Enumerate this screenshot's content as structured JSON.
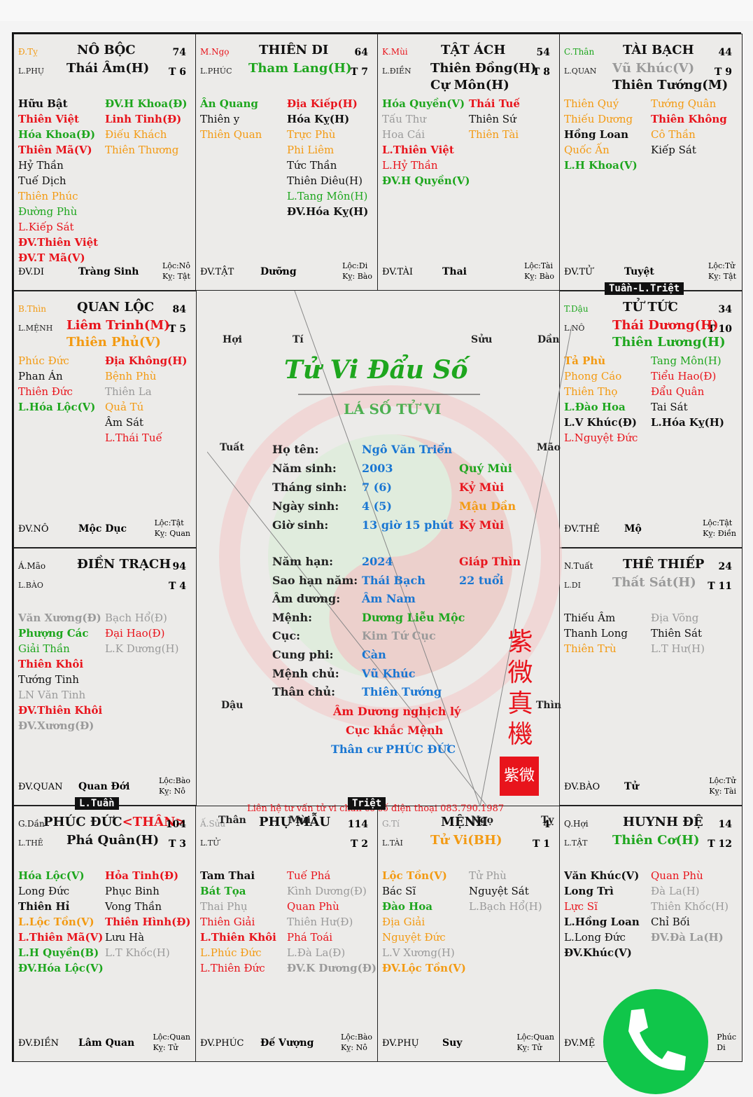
{
  "cells": [
    {
      "id": "no-boc",
      "can": {
        "t": "Đ.Tỵ",
        "c": "orange"
      },
      "name": "NÔ BỘC",
      "age": "74",
      "lsub": "L.PHỤ",
      "t": "T 6",
      "main": [
        {
          "t": "Thái Âm(H)",
          "c": "black"
        }
      ],
      "left": [
        {
          "t": "Hữu Bật",
          "c": "black",
          "b": 1
        },
        {
          "t": "Thiên Việt",
          "c": "red",
          "b": 1
        },
        {
          "t": "Hóa Khoa(Đ)",
          "c": "green",
          "b": 1
        },
        {
          "t": "Thiên Mã(V)",
          "c": "red",
          "b": 1
        },
        {
          "t": "Hỷ Thần",
          "c": "black"
        },
        {
          "t": "Tuế Dịch",
          "c": "black"
        },
        {
          "t": "Thiên Phúc",
          "c": "orange"
        },
        {
          "t": "Đường Phù",
          "c": "green"
        },
        {
          "t": "L.Kiếp Sát",
          "c": "red"
        },
        {
          "t": "ĐV.Thiên Việt",
          "c": "red",
          "b": 1
        },
        {
          "t": "ĐV.T Mã(V)",
          "c": "red",
          "b": 1
        }
      ],
      "right": [
        {
          "t": "ĐV.H Khoa(Đ)",
          "c": "green",
          "b": 1
        },
        {
          "t": "Linh Tinh(Đ)",
          "c": "red",
          "b": 1
        },
        {
          "t": "Điếu Khách",
          "c": "orange"
        },
        {
          "t": "Thiên Thương",
          "c": "orange"
        }
      ],
      "dv": "ĐV.DI",
      "stage": "Tràng Sinh",
      "loc": "Lộc:Nô",
      "ky": "Kỵ: Tật"
    },
    {
      "id": "thien-di",
      "can": {
        "t": "M.Ngọ",
        "c": "red"
      },
      "name": "THIÊN DI",
      "age": "64",
      "lsub": "L.PHÚC",
      "t": "T 7",
      "main": [
        {
          "t": "Tham Lang(H)",
          "c": "green"
        }
      ],
      "left": [
        {
          "t": "Ân Quang",
          "c": "green",
          "b": 1
        },
        {
          "t": "Thiên y",
          "c": "black"
        },
        {
          "t": "Thiên Quan",
          "c": "orange"
        }
      ],
      "right": [
        {
          "t": "Địa Kiếp(H)",
          "c": "red",
          "b": 1
        },
        {
          "t": "Hóa Kỵ(H)",
          "c": "black",
          "b": 1
        },
        {
          "t": "Trực Phù",
          "c": "orange"
        },
        {
          "t": "Phi Liêm",
          "c": "orange"
        },
        {
          "t": "Tức Thần",
          "c": "black"
        },
        {
          "t": "Thiên Diêu(H)",
          "c": "black"
        },
        {
          "t": "L.Tang Môn(H)",
          "c": "green"
        },
        {
          "t": "ĐV.Hóa Kỵ(H)",
          "c": "black",
          "b": 1
        }
      ],
      "dv": "ĐV.TẬT",
      "stage": "Dưỡng",
      "loc": "Lộc:Di",
      "ky": "Kỵ: Bào"
    },
    {
      "id": "tat-ach",
      "can": {
        "t": "K.Mùi",
        "c": "red"
      },
      "name": "TẬT ÁCH",
      "age": "54",
      "lsub": "L.ĐIỀN",
      "t": "T 8",
      "main": [
        {
          "t": "Thiên Đồng(H)",
          "c": "black"
        },
        {
          "t": "Cự Môn(H)",
          "c": "black"
        }
      ],
      "left": [
        {
          "t": "Hóa Quyền(V)",
          "c": "green",
          "b": 1
        },
        {
          "t": "Tấu Thư",
          "c": "gray"
        },
        {
          "t": "Hoa Cái",
          "c": "gray"
        },
        {
          "t": "L.Thiên Việt",
          "c": "red",
          "b": 1
        },
        {
          "t": "L.Hỷ Thần",
          "c": "red"
        },
        {
          "t": "ĐV.H Quyền(V)",
          "c": "green",
          "b": 1
        }
      ],
      "right": [
        {
          "t": "Thái Tuế",
          "c": "red",
          "b": 1
        },
        {
          "t": "Thiên Sứ",
          "c": "black"
        },
        {
          "t": "Thiên Tài",
          "c": "orange"
        }
      ],
      "dv": "ĐV.TÀI",
      "stage": "Thai",
      "loc": "Lộc:Tài",
      "ky": "Kỵ: Bào"
    },
    {
      "id": "tai-bach",
      "can": {
        "t": "C.Thân",
        "c": "green"
      },
      "name": "TÀI BẠCH",
      "age": "44",
      "lsub": "L.QUAN",
      "t": "T 9",
      "main": [
        {
          "t": "Vũ Khúc(V)",
          "c": "gray"
        },
        {
          "t": "Thiên Tướng(M)",
          "c": "black"
        }
      ],
      "left": [
        {
          "t": "Thiên Quý",
          "c": "orange"
        },
        {
          "t": "Thiếu Dương",
          "c": "orange"
        },
        {
          "t": "Hồng Loan",
          "c": "black",
          "b": 1
        },
        {
          "t": "Quốc Ấn",
          "c": "orange"
        },
        {
          "t": "L.H Khoa(V)",
          "c": "green",
          "b": 1
        }
      ],
      "right": [
        {
          "t": "Tướng Quân",
          "c": "orange"
        },
        {
          "t": "Thiên Không",
          "c": "red",
          "b": 1
        },
        {
          "t": "Cô Thần",
          "c": "orange"
        },
        {
          "t": "Kiếp Sát",
          "c": "black"
        }
      ],
      "dv": "ĐV.TỬ",
      "stage": "Tuyệt",
      "loc": "Lộc:Tử",
      "ky": "Kỵ: Tật"
    },
    {
      "id": "quan-loc",
      "can": {
        "t": "B.Thìn",
        "c": "orange"
      },
      "name": "QUAN LỘC",
      "age": "84",
      "lsub": "L.MỆNH",
      "t": "T 5",
      "main": [
        {
          "t": "Liêm Trinh(M)",
          "c": "red"
        },
        {
          "t": "Thiên Phủ(V)",
          "c": "orange"
        }
      ],
      "left": [
        {
          "t": "Phúc Đức",
          "c": "orange"
        },
        {
          "t": "Phan Án",
          "c": "black"
        },
        {
          "t": "Thiên Đức",
          "c": "red"
        },
        {
          "t": "L.Hóa Lộc(V)",
          "c": "green",
          "b": 1
        }
      ],
      "right": [
        {
          "t": "Địa Không(H)",
          "c": "red",
          "b": 1
        },
        {
          "t": "Bệnh Phù",
          "c": "orange"
        },
        {
          "t": "Thiên La",
          "c": "gray"
        },
        {
          "t": "Quả Tú",
          "c": "orange"
        },
        {
          "t": "Âm Sát",
          "c": "black"
        },
        {
          "t": "L.Thái Tuế",
          "c": "red"
        }
      ],
      "dv": "ĐV.NÔ",
      "stage": "Mộc Dục",
      "loc": "Lộc:Tật",
      "ky": "Kỵ: Quan"
    },
    {
      "id": "tu-tuc",
      "can": {
        "t": "T.Dậu",
        "c": "green"
      },
      "name": "TỬ TỨC",
      "age": "34",
      "lsub": "L.NÔ",
      "t": "T 10",
      "main": [
        {
          "t": "Thái Dương(H)",
          "c": "red"
        },
        {
          "t": "Thiên Lương(H)",
          "c": "green"
        }
      ],
      "left": [
        {
          "t": "Tả Phù",
          "c": "orange",
          "b": 1
        },
        {
          "t": "Phong Cáo",
          "c": "orange"
        },
        {
          "t": "Thiên Thọ",
          "c": "orange"
        },
        {
          "t": "L.Đào Hoa",
          "c": "green",
          "b": 1
        },
        {
          "t": "L.V Khúc(Đ)",
          "c": "black",
          "b": 1
        },
        {
          "t": "L.Nguyệt Đức",
          "c": "red"
        }
      ],
      "right": [
        {
          "t": "Tang Môn(H)",
          "c": "green"
        },
        {
          "t": "Tiểu Hao(Đ)",
          "c": "red"
        },
        {
          "t": "Đẩu Quân",
          "c": "red"
        },
        {
          "t": "Tai Sát",
          "c": "black"
        },
        {
          "t": "L.Hóa Kỵ(H)",
          "c": "black",
          "b": 1
        }
      ],
      "dv": "ĐV.THÊ",
      "stage": "Mộ",
      "loc": "Lộc:Tật",
      "ky": "Kỵ: Điền"
    },
    {
      "id": "dien-trach",
      "can": {
        "t": "Á.Mão",
        "c": "black"
      },
      "name": "ĐIỀN TRẠCH",
      "age": "94",
      "lsub": "L.BÀO",
      "t": "T 4",
      "main": [],
      "left": [
        {
          "t": "Văn Xương(Đ)",
          "c": "gray",
          "b": 1
        },
        {
          "t": "Phượng Các",
          "c": "green",
          "b": 1
        },
        {
          "t": "Giải Thần",
          "c": "green"
        },
        {
          "t": "Thiên Khôi",
          "c": "red",
          "b": 1
        },
        {
          "t": "Tướng Tinh",
          "c": "black"
        },
        {
          "t": "LN Văn Tinh",
          "c": "gray"
        },
        {
          "t": "ĐV.Thiên Khôi",
          "c": "red",
          "b": 1
        },
        {
          "t": "ĐV.Xương(Đ)",
          "c": "gray",
          "b": 1
        }
      ],
      "right": [
        {
          "t": "Bạch Hổ(Đ)",
          "c": "gray"
        },
        {
          "t": "Đại Hao(Đ)",
          "c": "red"
        },
        {
          "t": "L.K Dương(H)",
          "c": "gray"
        }
      ],
      "dv": "ĐV.QUAN",
      "stage": "Quan Đới",
      "loc": "Lộc:Bào",
      "ky": "Kỵ: Nô"
    },
    {
      "id": "the-thiep",
      "can": {
        "t": "N.Tuất",
        "c": "black"
      },
      "name": "THÊ THIẾP",
      "age": "24",
      "lsub": "L.DI",
      "t": "T 11",
      "main": [
        {
          "t": "Thất Sát(H)",
          "c": "gray"
        }
      ],
      "left": [
        {
          "t": "Thiếu Âm",
          "c": "black"
        },
        {
          "t": "Thanh Long",
          "c": "black"
        },
        {
          "t": "Thiên Trù",
          "c": "orange"
        }
      ],
      "right": [
        {
          "t": "Địa Võng",
          "c": "gray"
        },
        {
          "t": "Thiên Sát",
          "c": "black"
        },
        {
          "t": "L.T Hư(H)",
          "c": "gray"
        }
      ],
      "dv": "ĐV.BÀO",
      "stage": "Tử",
      "loc": "Lộc:Tử",
      "ky": "Kỵ: Tài"
    },
    {
      "id": "phuc-duc",
      "can": {
        "t": "G.Dần",
        "c": "black"
      },
      "name": "PHÚC ĐỨC",
      "nameExtra": "<THÂN>",
      "age": "104",
      "lsub": "L.THÊ",
      "t": "T 3",
      "main": [
        {
          "t": "Phá Quân(H)",
          "c": "black"
        }
      ],
      "left": [
        {
          "t": "Hóa Lộc(V)",
          "c": "green",
          "b": 1
        },
        {
          "t": "Long Đức",
          "c": "black"
        },
        {
          "t": "Thiên Hỉ",
          "c": "black",
          "b": 1
        },
        {
          "t": "L.Lộc Tồn(V)",
          "c": "orange",
          "b": 1
        },
        {
          "t": "L.Thiên Mã(V)",
          "c": "red",
          "b": 1
        },
        {
          "t": "L.H Quyền(B)",
          "c": "green",
          "b": 1
        },
        {
          "t": "ĐV.Hóa Lộc(V)",
          "c": "green",
          "b": 1
        }
      ],
      "right": [
        {
          "t": "Hỏa Tinh(Đ)",
          "c": "red",
          "b": 1
        },
        {
          "t": "Phục Binh",
          "c": "black"
        },
        {
          "t": "Vong Thần",
          "c": "black"
        },
        {
          "t": "Thiên Hình(Đ)",
          "c": "red",
          "b": 1
        },
        {
          "t": "Lưu Hà",
          "c": "black"
        },
        {
          "t": "L.T Khốc(H)",
          "c": "gray"
        }
      ],
      "dv": "ĐV.ĐIỀN",
      "stage": "Lâm Quan",
      "loc": "Lộc:Quan",
      "ky": "Kỵ: Tử"
    },
    {
      "id": "phu-mau",
      "can": {
        "t": "Ấ.Sửu",
        "c": "gray"
      },
      "name": "PHỤ MẪU",
      "age": "114",
      "lsub": "L.TỬ",
      "t": "T 2",
      "main": [],
      "left": [
        {
          "t": "Tam Thai",
          "c": "black",
          "b": 1
        },
        {
          "t": "Bát Tọa",
          "c": "green",
          "b": 1
        },
        {
          "t": "Thai Phụ",
          "c": "gray"
        },
        {
          "t": "Thiên Giải",
          "c": "red"
        },
        {
          "t": "L.Thiên Khôi",
          "c": "red",
          "b": 1
        },
        {
          "t": "L.Phúc Đức",
          "c": "orange"
        },
        {
          "t": "L.Thiên Đức",
          "c": "red"
        }
      ],
      "right": [
        {
          "t": "Tuế Phá",
          "c": "red"
        },
        {
          "t": "Kình Dương(Đ)",
          "c": "gray"
        },
        {
          "t": "Quan Phù",
          "c": "red"
        },
        {
          "t": "Thiên Hư(Đ)",
          "c": "gray"
        },
        {
          "t": "Phá Toái",
          "c": "red"
        },
        {
          "t": "L.Đà La(Đ)",
          "c": "gray"
        },
        {
          "t": "ĐV.K Dương(Đ)",
          "c": "gray",
          "b": 1
        }
      ],
      "dv": "ĐV.PHÚC",
      "stage": "Đế Vượng",
      "loc": "Lộc:Bào",
      "ky": "Kỵ: Nô"
    },
    {
      "id": "menh",
      "can": {
        "t": "G.Tí",
        "c": "gray"
      },
      "name": "MỆNH",
      "age": "4",
      "lsub": "L.TÀI",
      "t": "T 1",
      "main": [
        {
          "t": "Tử Vi(BH)",
          "c": "orange"
        }
      ],
      "left": [
        {
          "t": "Lộc Tồn(V)",
          "c": "orange",
          "b": 1
        },
        {
          "t": "Bác Sĩ",
          "c": "black"
        },
        {
          "t": "Đào Hoa",
          "c": "green",
          "b": 1
        },
        {
          "t": "Địa Giải",
          "c": "orange"
        },
        {
          "t": "Nguyệt Đức",
          "c": "orange"
        },
        {
          "t": "L.V Xương(H)",
          "c": "gray"
        },
        {
          "t": "ĐV.Lộc Tồn(V)",
          "c": "orange",
          "b": 1
        }
      ],
      "right": [
        {
          "t": "Tử Phù",
          "c": "gray"
        },
        {
          "t": "Nguyệt Sát",
          "c": "black"
        },
        {
          "t": "L.Bạch Hổ(H)",
          "c": "gray"
        }
      ],
      "dv": "ĐV.PHỤ",
      "stage": "Suy",
      "loc": "Lộc:Quan",
      "ky": "Kỵ: Tử"
    },
    {
      "id": "huynh-de",
      "can": {
        "t": "Q.Hợi",
        "c": "black"
      },
      "name": "HUYNH ĐỆ",
      "age": "14",
      "lsub": "L.TẬT",
      "t": "T 12",
      "main": [
        {
          "t": "Thiên Cơ(H)",
          "c": "green"
        }
      ],
      "left": [
        {
          "t": "Văn Khúc(V)",
          "c": "black",
          "b": 1
        },
        {
          "t": "Long Trì",
          "c": "black",
          "b": 1
        },
        {
          "t": "Lực Sĩ",
          "c": "red"
        },
        {
          "t": "L.Hồng Loan",
          "c": "black",
          "b": 1
        },
        {
          "t": "L.Long Đức",
          "c": "black"
        },
        {
          "t": "ĐV.Khúc(V)",
          "c": "black",
          "b": 1
        }
      ],
      "right": [
        {
          "t": "Quan Phù",
          "c": "red"
        },
        {
          "t": "Đà La(H)",
          "c": "gray"
        },
        {
          "t": "Thiên Khốc(H)",
          "c": "gray"
        },
        {
          "t": "Chỉ Bối",
          "c": "black"
        },
        {
          "t": "ĐV.Đà La(H)",
          "c": "gray",
          "b": 1
        }
      ],
      "dv": "ĐV.MỆ",
      "stage": "",
      "loc": "Phúc",
      "ky": "Di"
    }
  ],
  "center": {
    "calligraphy": "Tử Vi Đẩu Số",
    "title": "LÁ SỐ TỬ VI",
    "rows": [
      {
        "l": "Họ tên:",
        "v": "Ngô Văn Triển",
        "c": "blue",
        "e": ""
      },
      {
        "l": "Năm sinh:",
        "v": "2003",
        "c": "blue",
        "e": "Quý Mùi",
        "ec": "green"
      },
      {
        "l": "Tháng sinh:",
        "v": "7 (6)",
        "c": "blue",
        "e": "Kỷ Mùi",
        "ec": "red"
      },
      {
        "l": "Ngày sinh:",
        "v": "4 (5)",
        "c": "blue",
        "e": "Mậu Dần",
        "ec": "orange"
      },
      {
        "l": "Giờ sinh:",
        "v": "13 giờ 15 phút",
        "c": "blue",
        "e": "Kỷ Mùi",
        "ec": "red"
      },
      {
        "l": "Năm hạn:",
        "v": "2024",
        "c": "blue",
        "e": "Giáp Thìn",
        "ec": "red"
      },
      {
        "l": "Sao hạn năm:",
        "v": "Thái Bạch",
        "c": "blue",
        "e": "22 tuổi",
        "ec": "blue"
      },
      {
        "l": "Âm dương:",
        "v": "Âm Nam",
        "c": "blue",
        "e": ""
      },
      {
        "l": "Mệnh:",
        "v": "Dương Liễu Mộc",
        "c": "green",
        "e": ""
      },
      {
        "l": "Cục:",
        "v": "Kim Tứ Cục",
        "c": "gray",
        "e": ""
      },
      {
        "l": "Cung phi:",
        "v": "Càn",
        "c": "blue",
        "e": ""
      },
      {
        "l": "Mệnh chủ:",
        "v": "Vũ Khúc",
        "c": "blue",
        "e": ""
      },
      {
        "l": "Thân chủ:",
        "v": "Thiên Tướng",
        "c": "blue",
        "e": ""
      }
    ],
    "note1": "Âm Dương nghịch lý",
    "note2": "Cục khắc Mệnh",
    "note3": "Thân cư PHÚC ĐỨC",
    "contact": "Liên hệ tư vấn tử vi chân cơ số điện thoại 083.790.1987",
    "seal_chars": [
      "紫",
      "微",
      "真",
      "機"
    ],
    "stamp": "紫微",
    "directions": {
      "hoi": "Hợi",
      "ti": "Tí",
      "suu": "Sửu",
      "dan": "Dần",
      "tuat": "Tuất",
      "mao": "Mão",
      "dau": "Dậu",
      "thin": "Thìn",
      "than": "Thân",
      "mui": "Mùi",
      "ngo": "Ngọ",
      "ty": "Tỵ"
    }
  },
  "tags": {
    "tuan_triet": "Tuần-L.Triệt",
    "l_tuan": "L.Tuần",
    "triet": "Triệt"
  },
  "colors": {
    "red": "#e8141c",
    "green": "#1ea61e",
    "orange": "#f39a12",
    "gray": "#9a9a9a",
    "blue": "#1976d2"
  }
}
